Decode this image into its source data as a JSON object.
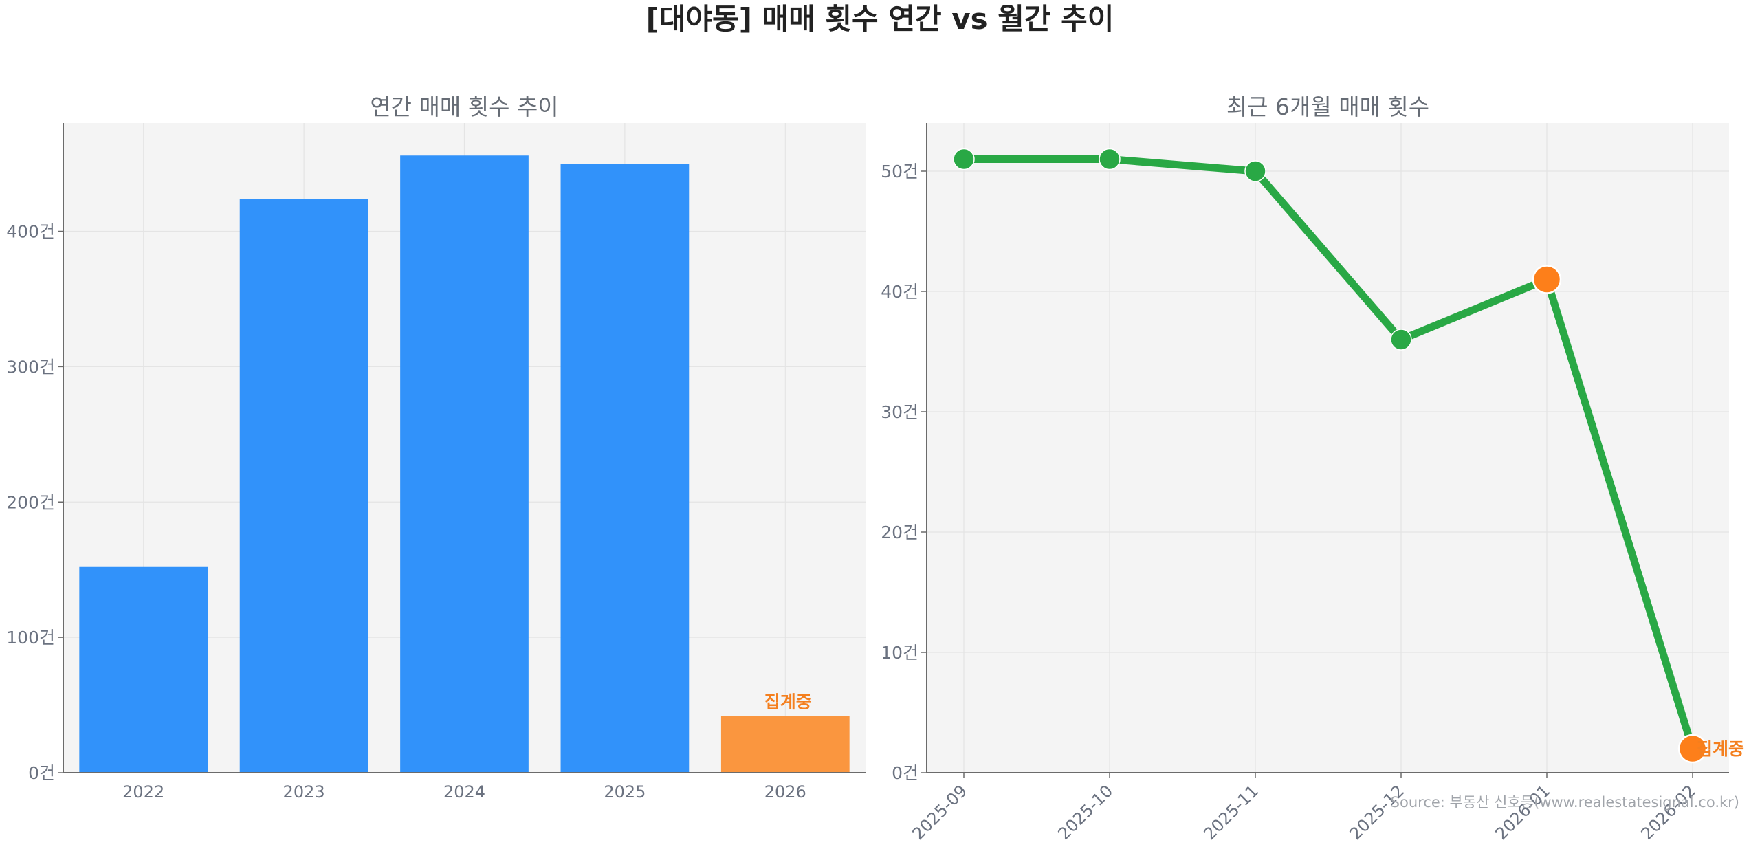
{
  "title": "[대야동] 매매 횟수 연간 vs 월간 추이",
  "source": "Source: 부동산 신호등(www.realestatesignal.co.kr)",
  "colors": {
    "annual_bar": "#3192fa",
    "annual_bar_pending": "#fa963f",
    "monthly_line": "#29a845",
    "monthly_marker": "#29a845",
    "highlight_marker": "#fd7f1a",
    "pending_label": "#f47f1e",
    "plot_bg": "#f4f4f4",
    "grid": "#e4e4e4",
    "axis": "#6b6b6b"
  },
  "chart_data": [
    {
      "type": "bar",
      "title": "연간 매매 횟수 추이",
      "categories": [
        "2022",
        "2023",
        "2024",
        "2025",
        "2026"
      ],
      "values": [
        152,
        424,
        456,
        450,
        42
      ],
      "pending_index": 4,
      "pending_label": "집계중",
      "ylim": [
        0,
        480
      ],
      "yticks": [
        0,
        100,
        200,
        300,
        400
      ],
      "ytick_labels": [
        "0건",
        "100건",
        "200건",
        "300건",
        "400건"
      ],
      "grid": true
    },
    {
      "type": "line",
      "title": "최근 6개월 매매 횟수",
      "categories": [
        "2025-09",
        "2025-10",
        "2025-11",
        "2025-12",
        "2026-01",
        "2026-02"
      ],
      "values": [
        51,
        51,
        50,
        36,
        41,
        2
      ],
      "highlight_indices": [
        4,
        5
      ],
      "pending_index": 5,
      "pending_label": "집계중",
      "ylim": [
        0,
        54
      ],
      "yticks": [
        0,
        10,
        20,
        30,
        40,
        50
      ],
      "ytick_labels": [
        "0건",
        "10건",
        "20건",
        "30건",
        "40건",
        "50건"
      ],
      "grid": true
    }
  ]
}
